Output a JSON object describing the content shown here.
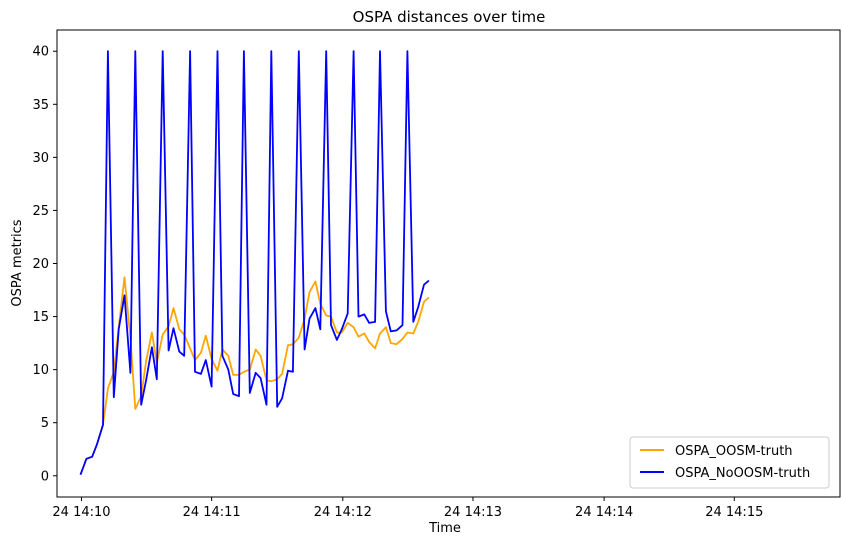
{
  "chart_data": {
    "type": "line",
    "title": "OSPA distances over time",
    "xlabel": "Time",
    "ylabel": "OSPA metrics",
    "xlim": [
      -0.0025,
      0.0775
    ],
    "ylim": [
      -2.0,
      42.0
    ],
    "y_ticks": [
      0,
      5,
      10,
      15,
      20,
      25,
      30,
      35,
      40
    ],
    "x_ticks": [
      {
        "value": 0.0,
        "label": "24 14:10"
      },
      {
        "value": 0.0133,
        "label": "24 14:11"
      },
      {
        "value": 0.0267,
        "label": "24 14:12"
      },
      {
        "value": 0.04,
        "label": "24 14:13"
      },
      {
        "value": 0.0534,
        "label": "24 14:14"
      },
      {
        "value": 0.0667,
        "label": "24 14:15"
      }
    ],
    "legend_position": "lower right",
    "series": [
      {
        "name": "OSPA_OOSM-truth",
        "color": "#ffa500",
        "points": [
          [
            -0.0001,
            0.1
          ],
          [
            0.0005,
            1.6
          ],
          [
            0.0011,
            1.8
          ],
          [
            0.0016,
            3.0
          ],
          [
            0.0022,
            4.8
          ],
          [
            0.0027,
            8.2
          ],
          [
            0.0033,
            9.8
          ],
          [
            0.0038,
            14.0
          ],
          [
            0.0044,
            18.7
          ],
          [
            0.005,
            13.0
          ],
          [
            0.0055,
            6.3
          ],
          [
            0.0061,
            7.5
          ],
          [
            0.0066,
            10.8
          ],
          [
            0.0072,
            13.5
          ],
          [
            0.0077,
            10.6
          ],
          [
            0.0083,
            13.3
          ],
          [
            0.0089,
            14.1
          ],
          [
            0.0094,
            15.8
          ],
          [
            0.01,
            13.8
          ],
          [
            0.0105,
            13.3
          ],
          [
            0.0111,
            12.0
          ],
          [
            0.0116,
            10.9
          ],
          [
            0.0122,
            11.6
          ],
          [
            0.0127,
            13.2
          ],
          [
            0.0133,
            11.0
          ],
          [
            0.0139,
            9.9
          ],
          [
            0.0144,
            11.9
          ],
          [
            0.015,
            11.3
          ],
          [
            0.0155,
            9.5
          ],
          [
            0.0161,
            9.5
          ],
          [
            0.0166,
            9.8
          ],
          [
            0.0172,
            10.0
          ],
          [
            0.0178,
            11.9
          ],
          [
            0.0183,
            11.3
          ],
          [
            0.0189,
            9.0
          ],
          [
            0.0194,
            8.9
          ],
          [
            0.02,
            9.1
          ],
          [
            0.0205,
            9.6
          ],
          [
            0.0211,
            12.3
          ],
          [
            0.0216,
            12.4
          ],
          [
            0.0222,
            13.0
          ],
          [
            0.0228,
            14.8
          ],
          [
            0.0233,
            17.3
          ],
          [
            0.0239,
            18.3
          ],
          [
            0.0244,
            16.2
          ],
          [
            0.025,
            15.1
          ],
          [
            0.0255,
            15.0
          ],
          [
            0.0261,
            13.5
          ],
          [
            0.0266,
            13.5
          ],
          [
            0.0272,
            14.4
          ],
          [
            0.0278,
            14.0
          ],
          [
            0.0283,
            13.1
          ],
          [
            0.0289,
            13.4
          ],
          [
            0.0294,
            12.6
          ],
          [
            0.03,
            12.0
          ],
          [
            0.0305,
            13.4
          ],
          [
            0.0311,
            14.0
          ],
          [
            0.0316,
            12.5
          ],
          [
            0.0322,
            12.4
          ],
          [
            0.0328,
            12.9
          ],
          [
            0.0333,
            13.5
          ],
          [
            0.0339,
            13.4
          ],
          [
            0.0344,
            14.5
          ],
          [
            0.035,
            16.4
          ],
          [
            0.0355,
            16.8
          ]
        ]
      },
      {
        "name": "OSPA_NoOOSM-truth",
        "color": "#0000ff",
        "points": [
          [
            -0.0001,
            0.1
          ],
          [
            0.0005,
            1.6
          ],
          [
            0.0011,
            1.8
          ],
          [
            0.0016,
            3.0
          ],
          [
            0.0022,
            4.8
          ],
          [
            0.0027,
            40.0
          ],
          [
            0.0033,
            7.4
          ],
          [
            0.0038,
            13.8
          ],
          [
            0.0044,
            17.0
          ],
          [
            0.005,
            9.7
          ],
          [
            0.0055,
            40.0
          ],
          [
            0.0061,
            6.7
          ],
          [
            0.0066,
            9.0
          ],
          [
            0.0072,
            12.1
          ],
          [
            0.0077,
            9.1
          ],
          [
            0.0083,
            40.0
          ],
          [
            0.0089,
            11.8
          ],
          [
            0.0094,
            13.9
          ],
          [
            0.01,
            11.7
          ],
          [
            0.0105,
            11.3
          ],
          [
            0.0111,
            40.0
          ],
          [
            0.0116,
            9.8
          ],
          [
            0.0122,
            9.6
          ],
          [
            0.0127,
            10.9
          ],
          [
            0.0133,
            8.4
          ],
          [
            0.0139,
            40.0
          ],
          [
            0.0144,
            11.3
          ],
          [
            0.015,
            10.0
          ],
          [
            0.0155,
            7.7
          ],
          [
            0.0161,
            7.5
          ],
          [
            0.0166,
            40.0
          ],
          [
            0.0172,
            7.8
          ],
          [
            0.0178,
            9.7
          ],
          [
            0.0183,
            9.2
          ],
          [
            0.0189,
            6.7
          ],
          [
            0.0194,
            40.0
          ],
          [
            0.02,
            6.5
          ],
          [
            0.0205,
            7.3
          ],
          [
            0.0211,
            9.9
          ],
          [
            0.0216,
            9.8
          ],
          [
            0.0222,
            40.0
          ],
          [
            0.0228,
            11.9
          ],
          [
            0.0233,
            14.8
          ],
          [
            0.0239,
            15.8
          ],
          [
            0.0244,
            13.8
          ],
          [
            0.025,
            40.0
          ],
          [
            0.0255,
            14.2
          ],
          [
            0.0261,
            12.8
          ],
          [
            0.0266,
            13.8
          ],
          [
            0.0272,
            15.3
          ],
          [
            0.0278,
            40.0
          ],
          [
            0.0283,
            15.0
          ],
          [
            0.0289,
            15.2
          ],
          [
            0.0294,
            14.4
          ],
          [
            0.03,
            14.5
          ],
          [
            0.0305,
            40.0
          ],
          [
            0.0311,
            15.5
          ],
          [
            0.0316,
            13.6
          ],
          [
            0.0322,
            13.7
          ],
          [
            0.0328,
            14.2
          ],
          [
            0.0333,
            40.0
          ],
          [
            0.0339,
            14.5
          ],
          [
            0.0344,
            15.9
          ],
          [
            0.035,
            18.0
          ],
          [
            0.0355,
            18.4
          ]
        ]
      }
    ]
  }
}
